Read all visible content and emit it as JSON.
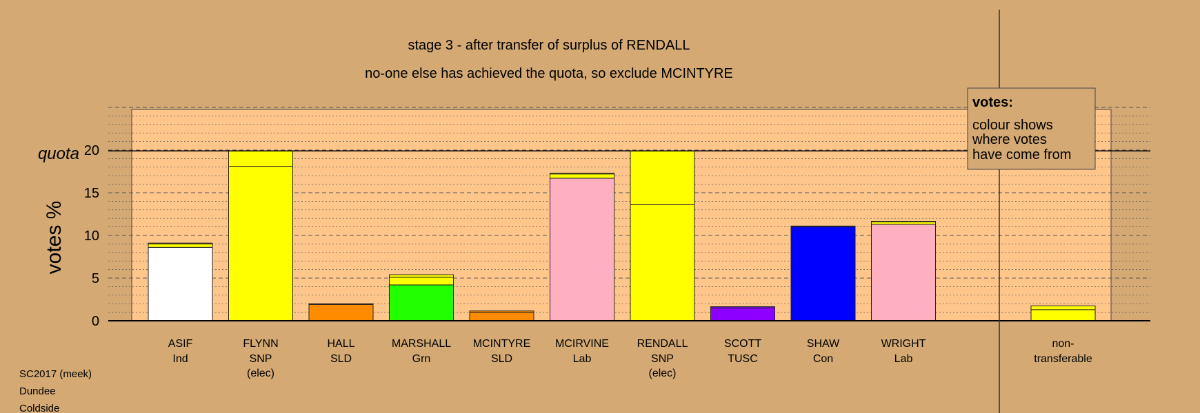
{
  "chart_data": {
    "type": "bar",
    "stacked": true,
    "title": "stage 3 - after transfer of surplus of RENDALL",
    "subtitle": "no-one else has achieved the quota, so exclude MCINTYRE",
    "ylabel": "votes %",
    "ylim": [
      0,
      25
    ],
    "yticks": [
      0,
      5,
      10,
      15,
      20
    ],
    "quota": 19.9,
    "quota_label": "quota",
    "legend": {
      "title": "votes:",
      "lines": [
        "colour shows",
        "where votes",
        "have come from"
      ],
      "placement": "top-right"
    },
    "candidates": [
      {
        "name": "ASIF",
        "party": "Ind",
        "note": "",
        "segments": [
          {
            "value": 8.6,
            "color": "#ffffff"
          },
          {
            "value": 0.4,
            "color": "#ffff00"
          },
          {
            "value": 0.1,
            "color": "#ff8c00"
          }
        ]
      },
      {
        "name": "FLYNN",
        "party": "SNP",
        "note": "(elec)",
        "segments": [
          {
            "value": 18.1,
            "color": "#ffff00"
          },
          {
            "value": 1.8,
            "color": "#ffff00"
          }
        ]
      },
      {
        "name": "HALL",
        "party": "SLD",
        "note": "",
        "segments": [
          {
            "value": 1.9,
            "color": "#ff8c00"
          },
          {
            "value": 0.1,
            "color": "#ff8c00"
          }
        ]
      },
      {
        "name": "MARSHALL",
        "party": "Grn",
        "note": "",
        "segments": [
          {
            "value": 4.2,
            "color": "#22ff00"
          },
          {
            "value": 0.9,
            "color": "#ffff00"
          },
          {
            "value": 0.3,
            "color": "#ffff00"
          }
        ]
      },
      {
        "name": "MCINTYRE",
        "party": "SLD",
        "note": "",
        "segments": [
          {
            "value": 1.0,
            "color": "#ff8c00"
          },
          {
            "value": 0.15,
            "color": "#ff8c00"
          }
        ]
      },
      {
        "name": "MCIRVINE",
        "party": "Lab",
        "note": "",
        "segments": [
          {
            "value": 16.7,
            "color": "#ffb0c0"
          },
          {
            "value": 0.5,
            "color": "#ffff00"
          },
          {
            "value": 0.1,
            "color": "#ffff00"
          }
        ]
      },
      {
        "name": "RENDALL",
        "party": "SNP",
        "note": "(elec)",
        "segments": [
          {
            "value": 13.6,
            "color": "#ffff00"
          },
          {
            "value": 6.3,
            "color": "#ffff00"
          }
        ]
      },
      {
        "name": "SCOTT",
        "party": "TUSC",
        "note": "",
        "segments": [
          {
            "value": 1.5,
            "color": "#8c00ff"
          },
          {
            "value": 0.15,
            "color": "#8c00ff"
          }
        ]
      },
      {
        "name": "SHAW",
        "party": "Con",
        "note": "",
        "segments": [
          {
            "value": 11.0,
            "color": "#0000ff"
          },
          {
            "value": 0.1,
            "color": "#0000ff"
          }
        ]
      },
      {
        "name": "WRIGHT",
        "party": "Lab",
        "note": "",
        "segments": [
          {
            "value": 11.3,
            "color": "#ffb0c0"
          },
          {
            "value": 0.3,
            "color": "#ffff00"
          },
          {
            "value": 0.05,
            "color": "#ff8c00"
          }
        ]
      }
    ],
    "nontransferable": {
      "label_top": "non-",
      "label_bottom": "transferable",
      "segments": [
        {
          "value": 1.3,
          "color": "#ffff00"
        },
        {
          "value": 0.45,
          "color": "#ffff00"
        }
      ]
    }
  },
  "footer": {
    "line1": "SC2017 (meek)",
    "line2": "Dundee",
    "line3": "Coldside"
  },
  "colors": {
    "background": "#d4a974",
    "plot_area": "#ffc68c",
    "legend_box": "#d4a974"
  }
}
